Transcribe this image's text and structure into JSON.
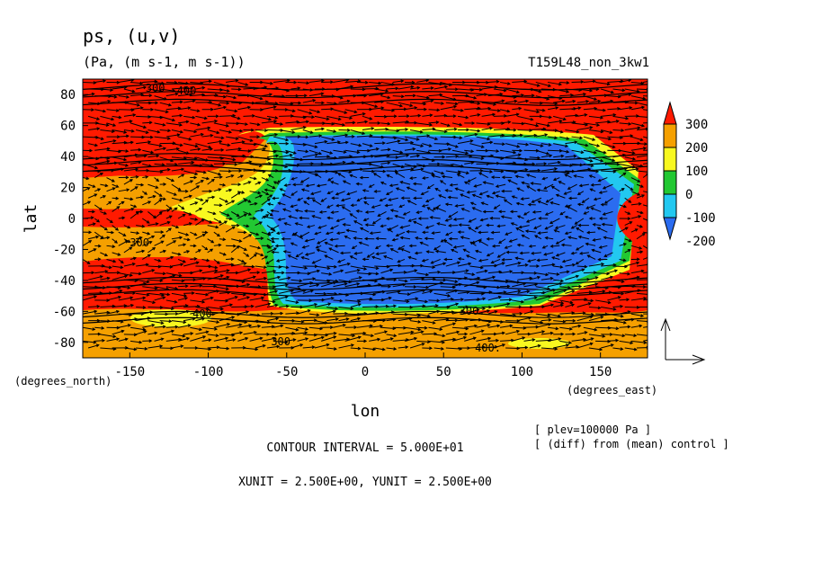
{
  "chart_data": {
    "type": "heatmap",
    "title": "ps, (u,v)",
    "units": "(Pa, (m s-1, m s-1))",
    "run_label": "T159L48_non_3kw1",
    "xlabel": "lon",
    "ylabel": "lat",
    "x_units": "(degrees_east)",
    "y_units": "(degrees_north)",
    "xlim": [
      -180,
      180
    ],
    "ylim": [
      -90,
      90
    ],
    "x_ticks": [
      -150,
      -100,
      -50,
      0,
      50,
      100,
      150
    ],
    "y_ticks": [
      80,
      60,
      40,
      20,
      0,
      -20,
      -40,
      -60,
      -80
    ],
    "colorbar": {
      "labels": [
        "300",
        "200",
        "100",
        "0",
        "-100",
        "-200"
      ],
      "levels": [
        -200,
        -100,
        0,
        100,
        200,
        300
      ],
      "colors": [
        "#2b6cf0",
        "#22c8f0",
        "#22c832",
        "#f8f820",
        "#f5a000",
        "#ff1a00"
      ]
    },
    "contour_labels": [
      "300",
      "400",
      "300",
      "300.",
      "400.",
      "300",
      "400"
    ],
    "grid": false,
    "notes": {
      "contour_interval": "CONTOUR INTERVAL = 5.000E+01",
      "unit_vectors": "XUNIT = 2.500E+00, YUNIT = 2.500E+00",
      "plev": "[ plev=100000 Pa ]",
      "diff": "[ (diff) from (mean) control ]"
    }
  }
}
